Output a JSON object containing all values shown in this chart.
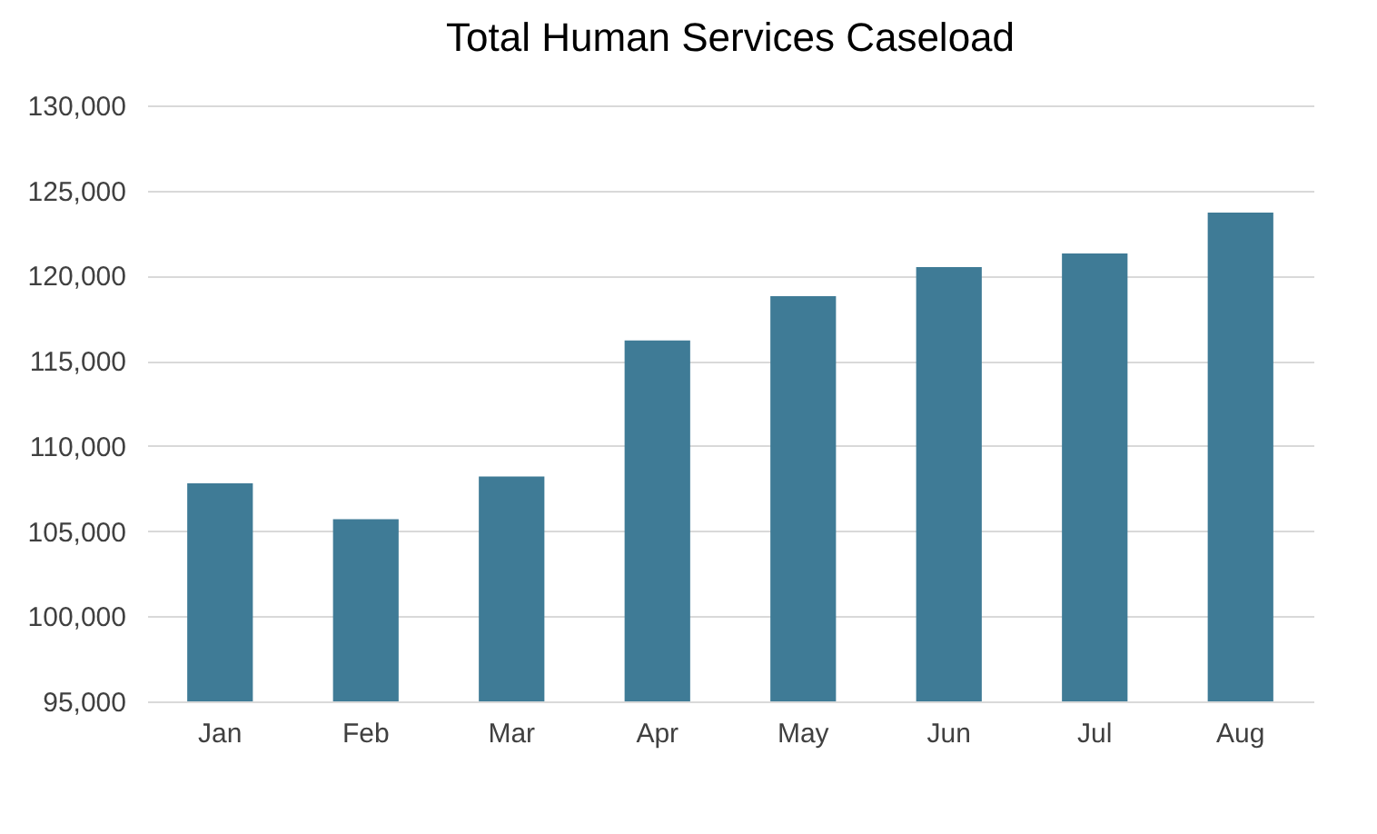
{
  "chart_data": {
    "type": "bar",
    "title": "Total Human Services Caseload",
    "categories": [
      "Jan",
      "Feb",
      "Mar",
      "Apr",
      "May",
      "Jun",
      "Jul",
      "Aug"
    ],
    "values": [
      107800,
      105700,
      108200,
      116200,
      118800,
      120500,
      121300,
      123700
    ],
    "color": "#3f7b96",
    "ylim": [
      95000,
      130000
    ],
    "yticks": [
      {
        "value": 95000,
        "label": "95,000"
      },
      {
        "value": 100000,
        "label": "100,000"
      },
      {
        "value": 105000,
        "label": "105,000"
      },
      {
        "value": 110000,
        "label": "110,000"
      },
      {
        "value": 115000,
        "label": "115,000"
      },
      {
        "value": 120000,
        "label": "120,000"
      },
      {
        "value": 125000,
        "label": "125,000"
      },
      {
        "value": 130000,
        "label": "130,000"
      }
    ],
    "grid": "y"
  }
}
